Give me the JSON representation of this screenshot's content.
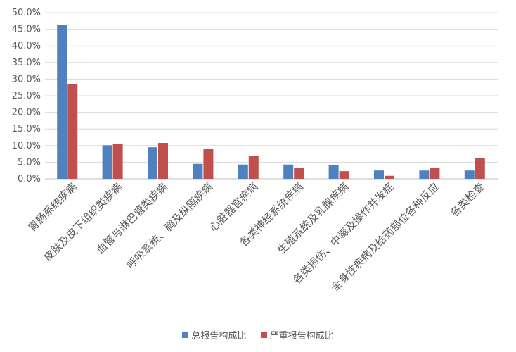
{
  "chart_data": {
    "type": "bar",
    "categories": [
      "胃肠系统疾病",
      "皮肤及皮下组织类疾病",
      "血管与淋巴管类疾病",
      "呼吸系统、胸及纵隔疾病",
      "心脏器官疾病",
      "各类神经系统疾病",
      "生殖系统及乳腺疾病",
      "各类损伤、中毒及操作并发症",
      "全身性疾病及给药部位各种反应",
      "各类检查"
    ],
    "series": [
      {
        "name": "总报告构成比",
        "color": "#4e81bd",
        "values": [
          46.2,
          10.1,
          9.5,
          4.5,
          4.3,
          4.3,
          4.1,
          2.5,
          2.5,
          2.5
        ]
      },
      {
        "name": "严重报告构成比",
        "color": "#c0504d",
        "values": [
          28.5,
          10.6,
          10.8,
          9.1,
          6.9,
          3.2,
          2.3,
          0.9,
          3.2,
          6.3
        ]
      }
    ],
    "yticks": [
      "0.0%",
      "5.0%",
      "10.0%",
      "15.0%",
      "20.0%",
      "25.0%",
      "30.0%",
      "35.0%",
      "40.0%",
      "45.0%",
      "50.0%"
    ],
    "ylim": [
      0,
      50
    ],
    "grid": true,
    "legend_position": "bottom"
  }
}
